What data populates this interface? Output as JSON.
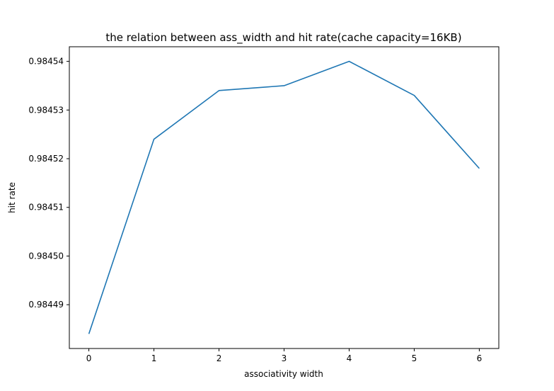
{
  "chart_data": {
    "type": "line",
    "title": "the relation between ass_width and hit rate(cache capacity=16KB)",
    "xlabel": "associativity width",
    "ylabel": "hit rate",
    "x": [
      0,
      1,
      2,
      3,
      4,
      5,
      6
    ],
    "series": [
      {
        "values": [
          0.984484,
          0.984524,
          0.984534,
          0.984535,
          0.98454,
          0.984533,
          0.984518
        ],
        "color": "#1f77b4"
      }
    ],
    "xticks": [
      0,
      1,
      2,
      3,
      4,
      5,
      6
    ],
    "xtick_labels": [
      "0",
      "1",
      "2",
      "3",
      "4",
      "5",
      "6"
    ],
    "yticks": [
      0.98449,
      0.9845,
      0.98451,
      0.98452,
      0.98453,
      0.98454
    ],
    "ytick_labels": [
      "0.98449",
      "0.98450",
      "0.98451",
      "0.98452",
      "0.98453",
      "0.98454"
    ],
    "xlim": [
      -0.3,
      6.3
    ],
    "ylim": [
      0.984481,
      0.984543
    ],
    "grid": false,
    "legend": false
  }
}
